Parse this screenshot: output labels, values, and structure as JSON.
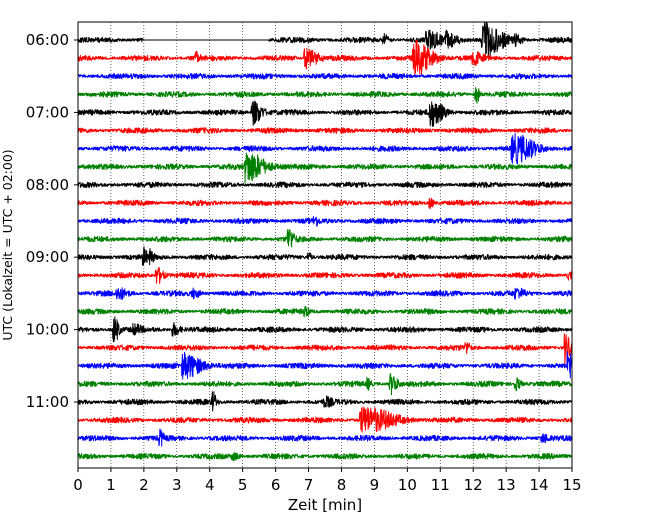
{
  "chart_data": {
    "type": "line",
    "subtype": "helicorder-seismogram",
    "title": "",
    "xlabel": "Zeit  [min]",
    "ylabel": "UTC (Lokalzeit = UTC + 02:00)",
    "xlim": [
      0,
      15
    ],
    "x_ticks": [
      "0",
      "1",
      "2",
      "3",
      "4",
      "5",
      "6",
      "7",
      "8",
      "9",
      "10",
      "11",
      "12",
      "13",
      "14",
      "15"
    ],
    "x_grid": "dotted-vertical",
    "y_ticks": [
      "06:00",
      "07:00",
      "08:00",
      "09:00",
      "10:00",
      "11:00"
    ],
    "line_interval_min": 15,
    "colors": [
      "#000000",
      "#ff0000",
      "#0000ff",
      "#008000"
    ],
    "traces": [
      {
        "start": "06:00",
        "color": "#000000",
        "gap": [
          2.0,
          5.8
        ],
        "events": [
          {
            "t": 9.3,
            "amp": 0.5,
            "dur": 0.15
          },
          {
            "t": 10.6,
            "amp": 0.8,
            "dur": 0.5
          },
          {
            "t": 11.2,
            "amp": 0.6,
            "dur": 0.4
          },
          {
            "t": 12.3,
            "amp": 1.6,
            "dur": 0.6
          },
          {
            "t": 13.3,
            "amp": 0.4,
            "dur": 0.2
          }
        ]
      },
      {
        "start": "06:15",
        "color": "#ff0000",
        "events": [
          {
            "t": 3.6,
            "amp": 0.6,
            "dur": 0.1
          },
          {
            "t": 6.9,
            "amp": 1.0,
            "dur": 0.4
          },
          {
            "t": 10.2,
            "amp": 1.6,
            "dur": 0.6
          },
          {
            "t": 12.0,
            "amp": 0.5,
            "dur": 0.3
          }
        ]
      },
      {
        "start": "06:30",
        "color": "#0000ff",
        "events": []
      },
      {
        "start": "06:45",
        "color": "#008000",
        "events": [
          {
            "t": 12.1,
            "amp": 0.8,
            "dur": 0.1
          }
        ]
      },
      {
        "start": "07:00",
        "color": "#000000",
        "events": [
          {
            "t": 5.3,
            "amp": 1.2,
            "dur": 0.3
          },
          {
            "t": 10.7,
            "amp": 1.3,
            "dur": 0.4
          }
        ]
      },
      {
        "start": "07:15",
        "color": "#ff0000",
        "events": []
      },
      {
        "start": "07:30",
        "color": "#0000ff",
        "events": [
          {
            "t": 13.2,
            "amp": 1.3,
            "dur": 0.7
          }
        ]
      },
      {
        "start": "07:45",
        "color": "#008000",
        "events": [
          {
            "t": 5.1,
            "amp": 1.5,
            "dur": 0.6
          }
        ]
      },
      {
        "start": "08:00",
        "color": "#000000",
        "events": []
      },
      {
        "start": "08:15",
        "color": "#ff0000",
        "events": [
          {
            "t": 10.7,
            "amp": 0.5,
            "dur": 0.1
          }
        ]
      },
      {
        "start": "08:30",
        "color": "#0000ff",
        "events": [
          {
            "t": 7.2,
            "amp": 0.4,
            "dur": 0.1
          }
        ]
      },
      {
        "start": "08:45",
        "color": "#008000",
        "events": [
          {
            "t": 6.4,
            "amp": 1.0,
            "dur": 0.15
          }
        ]
      },
      {
        "start": "09:00",
        "color": "#000000",
        "events": [
          {
            "t": 2.0,
            "amp": 0.8,
            "dur": 0.1
          },
          {
            "t": 2.2,
            "amp": 0.6,
            "dur": 0.1
          },
          {
            "t": 7.0,
            "amp": 0.4,
            "dur": 0.1
          }
        ]
      },
      {
        "start": "09:15",
        "color": "#ff0000",
        "events": [
          {
            "t": 2.4,
            "amp": 0.8,
            "dur": 0.2
          },
          {
            "t": 14.9,
            "amp": 0.5,
            "dur": 0.1
          }
        ]
      },
      {
        "start": "09:30",
        "color": "#0000ff",
        "events": [
          {
            "t": 1.2,
            "amp": 0.5,
            "dur": 0.3
          },
          {
            "t": 3.5,
            "amp": 0.4,
            "dur": 0.2
          },
          {
            "t": 13.3,
            "amp": 0.4,
            "dur": 0.3
          }
        ]
      },
      {
        "start": "09:45",
        "color": "#008000",
        "events": [
          {
            "t": 6.9,
            "amp": 0.5,
            "dur": 0.1
          }
        ]
      },
      {
        "start": "10:00",
        "color": "#000000",
        "events": [
          {
            "t": 1.1,
            "amp": 1.3,
            "dur": 0.15
          },
          {
            "t": 1.7,
            "amp": 0.4,
            "dur": 0.2
          },
          {
            "t": 2.9,
            "amp": 0.6,
            "dur": 0.2
          }
        ]
      },
      {
        "start": "10:15",
        "color": "#ff0000",
        "events": [
          {
            "t": 11.8,
            "amp": 0.5,
            "dur": 0.1
          },
          {
            "t": 14.8,
            "amp": 1.6,
            "dur": 0.15
          }
        ]
      },
      {
        "start": "10:30",
        "color": "#0000ff",
        "events": [
          {
            "t": 3.2,
            "amp": 1.2,
            "dur": 0.6
          },
          {
            "t": 14.9,
            "amp": 1.3,
            "dur": 0.2
          }
        ]
      },
      {
        "start": "10:45",
        "color": "#008000",
        "events": [
          {
            "t": 8.8,
            "amp": 0.5,
            "dur": 0.1
          },
          {
            "t": 9.5,
            "amp": 1.0,
            "dur": 0.2
          },
          {
            "t": 13.3,
            "amp": 0.6,
            "dur": 0.15
          }
        ]
      },
      {
        "start": "11:00",
        "color": "#000000",
        "events": [
          {
            "t": 4.1,
            "amp": 0.9,
            "dur": 0.1
          },
          {
            "t": 7.5,
            "amp": 0.4,
            "dur": 0.2
          }
        ]
      },
      {
        "start": "11:15",
        "color": "#ff0000",
        "events": [
          {
            "t": 8.6,
            "amp": 1.2,
            "dur": 1.0
          }
        ]
      },
      {
        "start": "11:30",
        "color": "#0000ff",
        "events": [
          {
            "t": 2.5,
            "amp": 0.7,
            "dur": 0.1
          },
          {
            "t": 14.1,
            "amp": 0.4,
            "dur": 0.2
          }
        ]
      },
      {
        "start": "11:45",
        "color": "#008000",
        "events": [
          {
            "t": 4.7,
            "amp": 0.3,
            "dur": 0.2
          }
        ]
      }
    ]
  }
}
